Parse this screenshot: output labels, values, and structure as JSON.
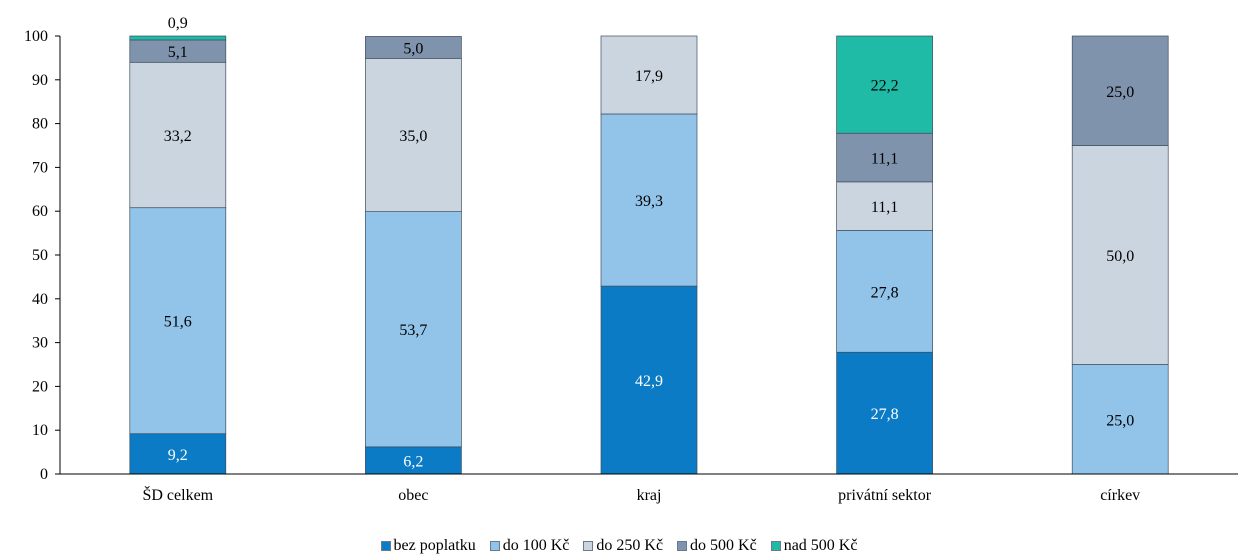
{
  "chart_data": {
    "type": "bar",
    "stacked": true,
    "categories": [
      "ŠD celkem",
      "obec",
      "kraj",
      "privátní sektor",
      "církev"
    ],
    "ylim": [
      0,
      100
    ],
    "yticks": [
      "0",
      "10",
      "20",
      "30",
      "40",
      "50",
      "60",
      "70",
      "80",
      "90",
      "100"
    ],
    "grid": false,
    "legend_position": "bottom",
    "series": [
      {
        "name": "bez poplatku",
        "color": "#0a7bc4",
        "text_color": "#ffffff",
        "values": [
          9.2,
          6.2,
          42.9,
          27.8,
          0
        ],
        "labels": [
          "9,2",
          "6,2",
          "42,9",
          "27,8",
          ""
        ]
      },
      {
        "name": "do 100 Kč",
        "color": "#92c3e8",
        "text_color": "#000000",
        "values": [
          51.6,
          53.7,
          39.3,
          27.8,
          25.0
        ],
        "labels": [
          "51,6",
          "53,7",
          "39,3",
          "27,8",
          "25,0"
        ]
      },
      {
        "name": "do 250 Kč",
        "color": "#cbd5df",
        "text_color": "#000000",
        "values": [
          33.2,
          35.0,
          17.9,
          11.1,
          50.0
        ],
        "labels": [
          "33,2",
          "35,0",
          "17,9",
          "11,1",
          "50,0"
        ]
      },
      {
        "name": "do 500 Kč",
        "color": "#7f93ac",
        "text_color": "#000000",
        "values": [
          5.1,
          5.0,
          0,
          11.1,
          25.0
        ],
        "labels": [
          "5,1",
          "5,0",
          "",
          "11,1",
          "25,0"
        ]
      },
      {
        "name": "nad 500 Kč",
        "color": "#1fbba6",
        "text_color": "#000000",
        "values": [
          0.9,
          0,
          0,
          22.2,
          0
        ],
        "labels": [
          "0,9",
          "",
          "",
          "22,2",
          ""
        ]
      }
    ]
  }
}
